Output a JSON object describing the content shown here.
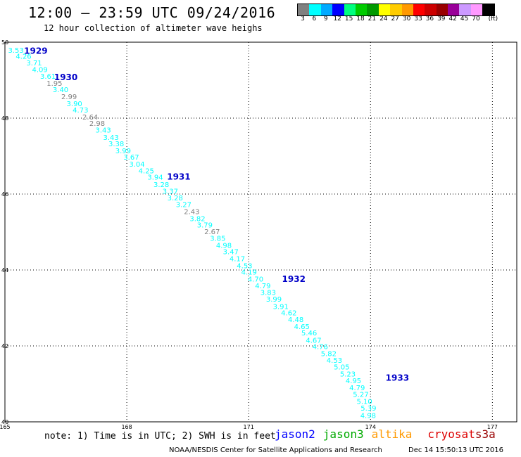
{
  "header": {
    "title": "12:00 — 23:59 UTC 09/24/2016",
    "subtitle": "12 hour collection of altimeter wave heighs"
  },
  "colorbar": {
    "colors": [
      "#808080",
      "#00ffff",
      "#00aaff",
      "#0000ff",
      "#00ff7f",
      "#00cc00",
      "#009900",
      "#ffff00",
      "#ffcc00",
      "#ff9900",
      "#ff0000",
      "#cc0000",
      "#990000",
      "#990099",
      "#cc99ff",
      "#ff99ff",
      "#000000"
    ],
    "labels": [
      "3",
      "6",
      "9",
      "12",
      "15",
      "18",
      "21",
      "24",
      "27",
      "30",
      "33",
      "36",
      "39",
      "42",
      "45",
      "70",
      "(ft)"
    ]
  },
  "chart_data": {
    "type": "scatter",
    "xlim": [
      165,
      177.6
    ],
    "ylim": [
      40,
      50
    ],
    "x_ticks": [
      {
        "value": 165,
        "label": "165"
      },
      {
        "value": 168,
        "label": "168"
      },
      {
        "value": 171,
        "label": "171"
      },
      {
        "value": 174,
        "label": "174"
      },
      {
        "value": 177,
        "label": "177"
      }
    ],
    "y_ticks": [
      {
        "value": 50,
        "label": "50"
      },
      {
        "value": 48,
        "label": "48"
      },
      {
        "value": 46,
        "label": "46"
      },
      {
        "value": 44,
        "label": "44"
      },
      {
        "value": 42,
        "label": "42"
      },
      {
        "value": 40,
        "label": "40"
      }
    ],
    "grid": true,
    "points": [
      {
        "lon": 165.27,
        "lat": 49.8,
        "swh": "3.53",
        "color": "#00ffff"
      },
      {
        "lon": 165.46,
        "lat": 49.64,
        "swh": "4.26",
        "color": "#00ffff"
      },
      {
        "lon": 165.72,
        "lat": 49.46,
        "swh": "3.71",
        "color": "#00ffff"
      },
      {
        "lon": 165.86,
        "lat": 49.29,
        "swh": "4.09",
        "color": "#00ffff"
      },
      {
        "lon": 166.06,
        "lat": 49.11,
        "swh": "3.61",
        "color": "#00ffff"
      },
      {
        "lon": 166.22,
        "lat": 48.93,
        "swh": "1.95",
        "color": "#808080"
      },
      {
        "lon": 166.37,
        "lat": 48.76,
        "swh": "3.40",
        "color": "#00ffff"
      },
      {
        "lon": 166.58,
        "lat": 48.57,
        "swh": "2.99",
        "color": "#808080"
      },
      {
        "lon": 166.71,
        "lat": 48.39,
        "swh": "3.90",
        "color": "#00ffff"
      },
      {
        "lon": 166.86,
        "lat": 48.22,
        "swh": "4.73",
        "color": "#00ffff"
      },
      {
        "lon": 167.1,
        "lat": 48.04,
        "swh": "2.64",
        "color": "#808080"
      },
      {
        "lon": 167.27,
        "lat": 47.87,
        "swh": "2.98",
        "color": "#808080"
      },
      {
        "lon": 167.42,
        "lat": 47.69,
        "swh": "3.43",
        "color": "#00ffff"
      },
      {
        "lon": 167.61,
        "lat": 47.5,
        "swh": "3.43",
        "color": "#00ffff"
      },
      {
        "lon": 167.74,
        "lat": 47.33,
        "swh": "3.38",
        "color": "#00ffff"
      },
      {
        "lon": 167.91,
        "lat": 47.15,
        "swh": "3.99",
        "color": "#00ffff"
      },
      {
        "lon": 168.11,
        "lat": 46.98,
        "swh": "3.67",
        "color": "#00ffff"
      },
      {
        "lon": 168.25,
        "lat": 46.8,
        "swh": "3.04",
        "color": "#00ffff"
      },
      {
        "lon": 168.48,
        "lat": 46.62,
        "swh": "4.25",
        "color": "#00ffff"
      },
      {
        "lon": 168.7,
        "lat": 46.45,
        "swh": "3.94",
        "color": "#00ffff"
      },
      {
        "lon": 168.85,
        "lat": 46.26,
        "swh": "3.28",
        "color": "#00ffff"
      },
      {
        "lon": 169.07,
        "lat": 46.08,
        "swh": "3.37",
        "color": "#00ffff"
      },
      {
        "lon": 169.19,
        "lat": 45.91,
        "swh": "3.28",
        "color": "#00ffff"
      },
      {
        "lon": 169.4,
        "lat": 45.73,
        "swh": "3.27",
        "color": "#00ffff"
      },
      {
        "lon": 169.6,
        "lat": 45.55,
        "swh": "2.43",
        "color": "#808080"
      },
      {
        "lon": 169.74,
        "lat": 45.36,
        "swh": "3.82",
        "color": "#00ffff"
      },
      {
        "lon": 169.92,
        "lat": 45.19,
        "swh": "3.79",
        "color": "#00ffff"
      },
      {
        "lon": 170.1,
        "lat": 45.02,
        "swh": "2.67",
        "color": "#808080"
      },
      {
        "lon": 170.24,
        "lat": 44.84,
        "swh": "3.85",
        "color": "#00ffff"
      },
      {
        "lon": 170.39,
        "lat": 44.66,
        "swh": "4.98",
        "color": "#00ffff"
      },
      {
        "lon": 170.56,
        "lat": 44.49,
        "swh": "3.47",
        "color": "#00ffff"
      },
      {
        "lon": 170.72,
        "lat": 44.31,
        "swh": "4.17",
        "color": "#00ffff"
      },
      {
        "lon": 170.9,
        "lat": 44.12,
        "swh": "4.53",
        "color": "#00ffff"
      },
      {
        "lon": 171.01,
        "lat": 43.95,
        "swh": "4.19",
        "color": "#00ffff"
      },
      {
        "lon": 171.17,
        "lat": 43.77,
        "swh": "4.70",
        "color": "#00ffff"
      },
      {
        "lon": 171.35,
        "lat": 43.59,
        "swh": "4.79",
        "color": "#00ffff"
      },
      {
        "lon": 171.48,
        "lat": 43.42,
        "swh": "3.83",
        "color": "#00ffff"
      },
      {
        "lon": 171.62,
        "lat": 43.24,
        "swh": "3.99",
        "color": "#00ffff"
      },
      {
        "lon": 171.79,
        "lat": 43.05,
        "swh": "3.91",
        "color": "#00ffff"
      },
      {
        "lon": 171.99,
        "lat": 42.88,
        "swh": "4.62",
        "color": "#00ffff"
      },
      {
        "lon": 172.16,
        "lat": 42.7,
        "swh": "4.48",
        "color": "#00ffff"
      },
      {
        "lon": 172.31,
        "lat": 42.52,
        "swh": "4.65",
        "color": "#00ffff"
      },
      {
        "lon": 172.49,
        "lat": 42.35,
        "swh": "5.46",
        "color": "#00ffff"
      },
      {
        "lon": 172.6,
        "lat": 42.16,
        "swh": "4.67",
        "color": "#00ffff"
      },
      {
        "lon": 172.76,
        "lat": 41.99,
        "swh": "4.76",
        "color": "#00ffff"
      },
      {
        "lon": 172.97,
        "lat": 41.81,
        "swh": "5.82",
        "color": "#00ffff"
      },
      {
        "lon": 173.11,
        "lat": 41.63,
        "swh": "4.53",
        "color": "#00ffff"
      },
      {
        "lon": 173.29,
        "lat": 41.45,
        "swh": "5.05",
        "color": "#00ffff"
      },
      {
        "lon": 173.44,
        "lat": 41.27,
        "swh": "5.23",
        "color": "#00ffff"
      },
      {
        "lon": 173.58,
        "lat": 41.09,
        "swh": "4.95",
        "color": "#00ffff"
      },
      {
        "lon": 173.67,
        "lat": 40.91,
        "swh": "4.79",
        "color": "#00ffff"
      },
      {
        "lon": 173.76,
        "lat": 40.73,
        "swh": "5.27",
        "color": "#00ffff"
      },
      {
        "lon": 173.85,
        "lat": 40.55,
        "swh": "5.10",
        "color": "#00ffff"
      },
      {
        "lon": 173.95,
        "lat": 40.37,
        "swh": "5.39",
        "color": "#00ffff"
      },
      {
        "lon": 173.94,
        "lat": 40.18,
        "swh": "4.98",
        "color": "#00ffff"
      }
    ],
    "cycles": [
      {
        "lon": 165.76,
        "lat": 49.77,
        "label": "1929"
      },
      {
        "lon": 166.5,
        "lat": 49.07,
        "label": "1930"
      },
      {
        "lon": 169.28,
        "lat": 46.45,
        "label": "1931"
      },
      {
        "lon": 172.11,
        "lat": 43.76,
        "label": "1932"
      },
      {
        "lon": 174.66,
        "lat": 41.16,
        "label": "1933"
      }
    ]
  },
  "note": "note: 1) Time is in UTC; 2) SWH is in feet",
  "satellites": [
    {
      "name": "jason2",
      "color": "#0000ff"
    },
    {
      "name": "jason3",
      "color": "#00aa00"
    },
    {
      "name": "altika",
      "color": "#ff9900"
    },
    {
      "name": "cryosat",
      "color": "#dd0000"
    },
    {
      "name": "s3a",
      "color": "#990000"
    }
  ],
  "footer": {
    "credit": "NOAA/NESDIS Center for Satellite Applications and Research",
    "timestamp": "Dec 14 15:50:13 UTC 2016"
  }
}
